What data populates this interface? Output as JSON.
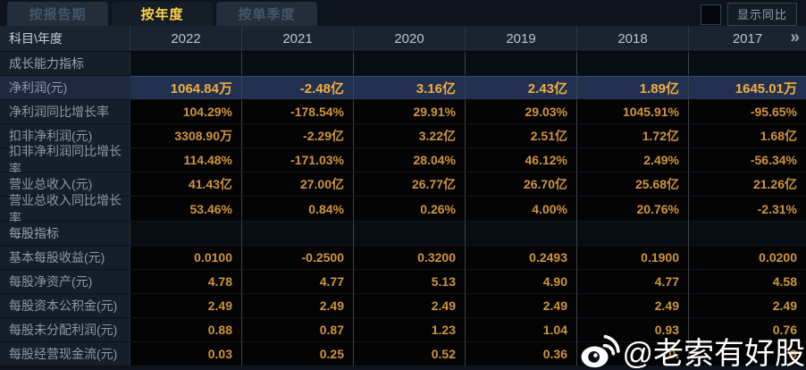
{
  "tab_bar": {
    "tabs": [
      {
        "id": "by-report-period",
        "label": "按报告期",
        "active": false
      },
      {
        "id": "by-year",
        "label": "按年度",
        "active": true
      },
      {
        "id": "by-quarter",
        "label": "按单季度",
        "active": false
      }
    ],
    "compare_toggle": {
      "label": "显示同比",
      "checked": false
    }
  },
  "table": {
    "corner_label": "科目\\年度",
    "years": [
      "2022",
      "2021",
      "2020",
      "2019",
      "2018",
      "2017"
    ],
    "more_years_icon": "»",
    "rows": [
      {
        "type": "section",
        "label": "成长能力指标"
      },
      {
        "type": "data",
        "label": "净利润(元)",
        "highlight": true,
        "values": [
          "1064.84万",
          "-2.48亿",
          "3.16亿",
          "2.43亿",
          "1.89亿",
          "1645.01万"
        ]
      },
      {
        "type": "data",
        "label": "净利润同比增长率",
        "values": [
          "104.29%",
          "-178.54%",
          "29.91%",
          "29.03%",
          "1045.91%",
          "-95.65%"
        ]
      },
      {
        "type": "data",
        "label": "扣非净利润(元)",
        "values": [
          "3308.90万",
          "-2.29亿",
          "3.22亿",
          "2.51亿",
          "1.72亿",
          "1.68亿"
        ]
      },
      {
        "type": "data",
        "label": "扣非净利润同比增长率",
        "values": [
          "114.48%",
          "-171.03%",
          "28.04%",
          "46.12%",
          "2.49%",
          "-56.34%"
        ]
      },
      {
        "type": "data",
        "label": "营业总收入(元)",
        "values": [
          "41.43亿",
          "27.00亿",
          "26.77亿",
          "26.70亿",
          "25.68亿",
          "21.26亿"
        ]
      },
      {
        "type": "data",
        "label": "营业总收入同比增长率",
        "values": [
          "53.46%",
          "0.84%",
          "0.26%",
          "4.00%",
          "20.76%",
          "-2.31%"
        ]
      },
      {
        "type": "section",
        "label": "每股指标"
      },
      {
        "type": "data",
        "label": "基本每股收益(元)",
        "values": [
          "0.0100",
          "-0.2500",
          "0.3200",
          "0.2493",
          "0.1900",
          "0.0200"
        ]
      },
      {
        "type": "data",
        "label": "每股净资产(元)",
        "values": [
          "4.78",
          "4.77",
          "5.13",
          "4.90",
          "4.77",
          "4.58"
        ]
      },
      {
        "type": "data",
        "label": "每股资本公积金(元)",
        "values": [
          "2.49",
          "2.49",
          "2.49",
          "2.49",
          "2.49",
          "2.49"
        ]
      },
      {
        "type": "data",
        "label": "每股未分配利润(元)",
        "values": [
          "0.88",
          "0.87",
          "1.23",
          "1.04",
          "0.93",
          "0.76"
        ]
      },
      {
        "type": "data",
        "label": "每股经营现金流(元)",
        "values": [
          "0.03",
          "0.25",
          "0.52",
          "0.36",
          "0.",
          "9"
        ]
      }
    ]
  },
  "watermark": {
    "icon": "weibo-icon",
    "text": "@老索有好股"
  },
  "colors": {
    "tab_active_text": "#ffd24a",
    "value_orange": "#cf953c",
    "highlight_value": "#f2ad3e",
    "highlight_row_bg": "#223150",
    "label_text": "#8d99a8",
    "header_bg": "#1a242f",
    "cell_bg": "#040404"
  }
}
